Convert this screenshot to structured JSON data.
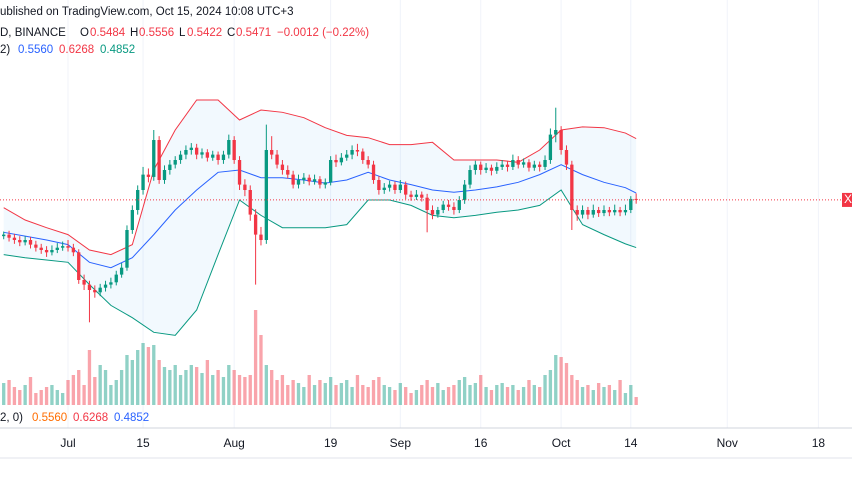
{
  "header": {
    "published": "ublished on TradingView.com, Oct 15, 2024 10:08 UTC+3",
    "symbol": "D, BINANCE",
    "ohlc": [
      "O",
      "0.5484",
      "H",
      "0.5556",
      "L",
      "0.5422",
      "C",
      "0.5471"
    ],
    "change": "−0.0012 (−0.22%)",
    "bb": [
      "2)",
      "0.5560",
      "0.6268",
      "0.4852"
    ],
    "bb_bottom": [
      "2, 0)",
      "0.5560",
      "0.6268",
      "0.4852"
    ],
    "price_tag": "X"
  },
  "chart_data": {
    "type": "candlestick",
    "up_color": "#089981",
    "down_color": "#f23645",
    "xlim": [
      -12.69,
      146.27
    ],
    "ylim": [
      0.2545,
      0.807
    ],
    "vlim": [
      0,
      100
    ],
    "grid": true,
    "xticks": [
      {
        "value": 0,
        "label": "Jul"
      },
      {
        "value": 14,
        "label": "15"
      },
      {
        "value": 31,
        "label": "Aug"
      },
      {
        "value": 49,
        "label": "19"
      },
      {
        "value": 62,
        "label": "Sep"
      },
      {
        "value": 77,
        "label": "16"
      },
      {
        "value": 92,
        "label": "Oct"
      },
      {
        "value": 105,
        "label": "14"
      },
      {
        "value": 123,
        "label": "Nov"
      },
      {
        "value": 140,
        "label": "18"
      }
    ],
    "x": [
      -12,
      -11,
      -10,
      -9,
      -8,
      -7,
      -6,
      -5,
      -4,
      -3,
      -2,
      -1,
      0,
      1,
      2,
      3,
      4,
      5,
      6,
      7,
      8,
      9,
      10,
      11,
      12,
      13,
      14,
      15,
      16,
      17,
      18,
      19,
      20,
      21,
      22,
      23,
      24,
      25,
      26,
      27,
      28,
      29,
      30,
      31,
      32,
      33,
      34,
      35,
      36,
      37,
      38,
      39,
      40,
      41,
      42,
      43,
      44,
      45,
      46,
      47,
      48,
      49,
      50,
      51,
      52,
      53,
      54,
      55,
      56,
      57,
      58,
      59,
      60,
      61,
      62,
      63,
      64,
      65,
      66,
      67,
      68,
      69,
      70,
      71,
      72,
      73,
      74,
      75,
      76,
      77,
      78,
      79,
      80,
      81,
      82,
      83,
      84,
      85,
      86,
      87,
      88,
      89,
      90,
      91,
      92,
      93,
      94,
      95,
      96,
      97,
      98,
      99,
      100,
      101,
      102,
      103,
      104,
      105,
      106
    ],
    "ohlc": [
      [
        0.5,
        0.506,
        0.496,
        0.502
      ],
      [
        0.502,
        0.507,
        0.493,
        0.498
      ],
      [
        0.498,
        0.503,
        0.49,
        0.495
      ],
      [
        0.495,
        0.5,
        0.487,
        0.492
      ],
      [
        0.492,
        0.5,
        0.488,
        0.495
      ],
      [
        0.495,
        0.499,
        0.484,
        0.489
      ],
      [
        0.489,
        0.494,
        0.48,
        0.485
      ],
      [
        0.485,
        0.49,
        0.477,
        0.482
      ],
      [
        0.482,
        0.487,
        0.473,
        0.479
      ],
      [
        0.479,
        0.488,
        0.475,
        0.482
      ],
      [
        0.482,
        0.491,
        0.478,
        0.485
      ],
      [
        0.485,
        0.493,
        0.481,
        0.487
      ],
      [
        0.487,
        0.495,
        0.48,
        0.485
      ],
      [
        0.485,
        0.49,
        0.474,
        0.479
      ],
      [
        0.479,
        0.483,
        0.438,
        0.443
      ],
      [
        0.443,
        0.45,
        0.43,
        0.437
      ],
      [
        0.437,
        0.442,
        0.388,
        0.43
      ],
      [
        0.43,
        0.436,
        0.42,
        0.427
      ],
      [
        0.427,
        0.438,
        0.422,
        0.433
      ],
      [
        0.433,
        0.442,
        0.428,
        0.437
      ],
      [
        0.437,
        0.446,
        0.432,
        0.44
      ],
      [
        0.44,
        0.455,
        0.436,
        0.45
      ],
      [
        0.45,
        0.465,
        0.446,
        0.459
      ],
      [
        0.459,
        0.514,
        0.455,
        0.508
      ],
      [
        0.508,
        0.54,
        0.503,
        0.534
      ],
      [
        0.534,
        0.566,
        0.528,
        0.56
      ],
      [
        0.56,
        0.59,
        0.554,
        0.58
      ],
      [
        0.58,
        0.588,
        0.57,
        0.577
      ],
      [
        0.577,
        0.638,
        0.572,
        0.625
      ],
      [
        0.625,
        0.63,
        0.568,
        0.573
      ],
      [
        0.573,
        0.592,
        0.568,
        0.586
      ],
      [
        0.586,
        0.599,
        0.58,
        0.593
      ],
      [
        0.593,
        0.604,
        0.588,
        0.599
      ],
      [
        0.599,
        0.611,
        0.594,
        0.606
      ],
      [
        0.606,
        0.618,
        0.6,
        0.612
      ],
      [
        0.612,
        0.621,
        0.606,
        0.615
      ],
      [
        0.615,
        0.62,
        0.6,
        0.606
      ],
      [
        0.606,
        0.614,
        0.601,
        0.609
      ],
      [
        0.609,
        0.613,
        0.597,
        0.602
      ],
      [
        0.602,
        0.611,
        0.598,
        0.606
      ],
      [
        0.606,
        0.61,
        0.593,
        0.599
      ],
      [
        0.599,
        0.611,
        0.594,
        0.606
      ],
      [
        0.606,
        0.632,
        0.601,
        0.625
      ],
      [
        0.625,
        0.63,
        0.594,
        0.599
      ],
      [
        0.599,
        0.604,
        0.56,
        0.567
      ],
      [
        0.567,
        0.574,
        0.552,
        0.56
      ],
      [
        0.56,
        0.566,
        0.52,
        0.528
      ],
      [
        0.528,
        0.535,
        0.437,
        0.502
      ],
      [
        0.502,
        0.512,
        0.488,
        0.495
      ],
      [
        0.495,
        0.645,
        0.49,
        0.612
      ],
      [
        0.612,
        0.63,
        0.6,
        0.606
      ],
      [
        0.606,
        0.612,
        0.588,
        0.593
      ],
      [
        0.593,
        0.599,
        0.58,
        0.586
      ],
      [
        0.586,
        0.592,
        0.575,
        0.58
      ],
      [
        0.58,
        0.585,
        0.562,
        0.567
      ],
      [
        0.567,
        0.58,
        0.562,
        0.573
      ],
      [
        0.573,
        0.582,
        0.568,
        0.576
      ],
      [
        0.576,
        0.58,
        0.566,
        0.571
      ],
      [
        0.571,
        0.58,
        0.567,
        0.574
      ],
      [
        0.574,
        0.578,
        0.562,
        0.567
      ],
      [
        0.567,
        0.575,
        0.562,
        0.57
      ],
      [
        0.57,
        0.604,
        0.566,
        0.599
      ],
      [
        0.599,
        0.606,
        0.59,
        0.596
      ],
      [
        0.596,
        0.608,
        0.592,
        0.602
      ],
      [
        0.602,
        0.612,
        0.598,
        0.606
      ],
      [
        0.606,
        0.618,
        0.6,
        0.612
      ],
      [
        0.612,
        0.62,
        0.604,
        0.61
      ],
      [
        0.61,
        0.614,
        0.594,
        0.599
      ],
      [
        0.599,
        0.604,
        0.588,
        0.593
      ],
      [
        0.593,
        0.598,
        0.568,
        0.573
      ],
      [
        0.573,
        0.578,
        0.554,
        0.56
      ],
      [
        0.56,
        0.569,
        0.555,
        0.563
      ],
      [
        0.563,
        0.572,
        0.558,
        0.567
      ],
      [
        0.567,
        0.571,
        0.555,
        0.56
      ],
      [
        0.56,
        0.573,
        0.556,
        0.567
      ],
      [
        0.567,
        0.571,
        0.548,
        0.554
      ],
      [
        0.554,
        0.559,
        0.546,
        0.551
      ],
      [
        0.551,
        0.56,
        0.547,
        0.554
      ],
      [
        0.554,
        0.558,
        0.545,
        0.55
      ],
      [
        0.55,
        0.555,
        0.505,
        0.534
      ],
      [
        0.534,
        0.54,
        0.522,
        0.528
      ],
      [
        0.528,
        0.538,
        0.524,
        0.534
      ],
      [
        0.534,
        0.546,
        0.53,
        0.541
      ],
      [
        0.541,
        0.547,
        0.533,
        0.538
      ],
      [
        0.538,
        0.544,
        0.528,
        0.534
      ],
      [
        0.534,
        0.552,
        0.53,
        0.547
      ],
      [
        0.547,
        0.573,
        0.542,
        0.567
      ],
      [
        0.567,
        0.592,
        0.562,
        0.586
      ],
      [
        0.586,
        0.598,
        0.58,
        0.593
      ],
      [
        0.593,
        0.597,
        0.58,
        0.586
      ],
      [
        0.586,
        0.595,
        0.582,
        0.589
      ],
      [
        0.589,
        0.593,
        0.579,
        0.585
      ],
      [
        0.585,
        0.596,
        0.581,
        0.59
      ],
      [
        0.59,
        0.599,
        0.586,
        0.593
      ],
      [
        0.593,
        0.597,
        0.584,
        0.59
      ],
      [
        0.59,
        0.606,
        0.586,
        0.599
      ],
      [
        0.599,
        0.604,
        0.588,
        0.593
      ],
      [
        0.593,
        0.601,
        0.589,
        0.596
      ],
      [
        0.596,
        0.6,
        0.584,
        0.589
      ],
      [
        0.589,
        0.598,
        0.585,
        0.593
      ],
      [
        0.593,
        0.597,
        0.584,
        0.59
      ],
      [
        0.59,
        0.605,
        0.586,
        0.599
      ],
      [
        0.599,
        0.64,
        0.594,
        0.632
      ],
      [
        0.632,
        0.667,
        0.622,
        0.638
      ],
      [
        0.638,
        0.643,
        0.606,
        0.612
      ],
      [
        0.612,
        0.618,
        0.586,
        0.593
      ],
      [
        0.593,
        0.598,
        0.508,
        0.534
      ],
      [
        0.534,
        0.54,
        0.52,
        0.528
      ],
      [
        0.528,
        0.54,
        0.523,
        0.534
      ],
      [
        0.534,
        0.538,
        0.522,
        0.528
      ],
      [
        0.528,
        0.541,
        0.524,
        0.534
      ],
      [
        0.534,
        0.538,
        0.525,
        0.53
      ],
      [
        0.53,
        0.54,
        0.526,
        0.534
      ],
      [
        0.534,
        0.538,
        0.526,
        0.531
      ],
      [
        0.531,
        0.541,
        0.527,
        0.534
      ],
      [
        0.534,
        0.538,
        0.526,
        0.531
      ],
      [
        0.531,
        0.541,
        0.527,
        0.534
      ],
      [
        0.534,
        0.552,
        0.53,
        0.5484
      ],
      [
        0.5484,
        0.5556,
        0.5422,
        0.5471
      ]
    ],
    "volume": [
      22,
      25,
      18,
      15,
      20,
      28,
      12,
      15,
      18,
      20,
      15,
      12,
      25,
      30,
      35,
      20,
      55,
      28,
      40,
      35,
      20,
      25,
      35,
      50,
      45,
      55,
      62,
      58,
      60,
      45,
      38,
      35,
      40,
      30,
      35,
      40,
      38,
      32,
      45,
      30,
      35,
      28,
      40,
      35,
      30,
      28,
      30,
      95,
      70,
      40,
      35,
      25,
      30,
      20,
      25,
      22,
      18,
      30,
      20,
      25,
      22,
      28,
      20,
      22,
      25,
      18,
      30,
      20,
      18,
      25,
      28,
      20,
      18,
      15,
      22,
      18,
      12,
      15,
      20,
      25,
      18,
      22,
      15,
      18,
      20,
      25,
      28,
      20,
      22,
      30,
      18,
      15,
      20,
      22,
      18,
      20,
      15,
      18,
      25,
      20,
      18,
      30,
      35,
      50,
      48,
      42,
      30,
      25,
      18,
      20,
      15,
      22,
      18,
      20,
      15,
      25,
      12,
      20,
      8
    ],
    "bands": {
      "x": [
        -12,
        -8,
        -4,
        0,
        4,
        8,
        12,
        16,
        20,
        24,
        28,
        32,
        36,
        40,
        44,
        48,
        52,
        56,
        60,
        64,
        68,
        72,
        76,
        80,
        84,
        88,
        92,
        96,
        100,
        104,
        106
      ],
      "upper": [
        0.537,
        0.521,
        0.511,
        0.502,
        0.482,
        0.476,
        0.489,
        0.586,
        0.638,
        0.677,
        0.677,
        0.651,
        0.664,
        0.661,
        0.654,
        0.641,
        0.631,
        0.628,
        0.619,
        0.619,
        0.622,
        0.599,
        0.599,
        0.599,
        0.596,
        0.612,
        0.638,
        0.642,
        0.641,
        0.634,
        0.6268
      ],
      "basis": [
        0.505,
        0.5,
        0.495,
        0.489,
        0.466,
        0.459,
        0.472,
        0.502,
        0.534,
        0.56,
        0.583,
        0.586,
        0.576,
        0.576,
        0.573,
        0.569,
        0.573,
        0.583,
        0.573,
        0.567,
        0.56,
        0.557,
        0.56,
        0.564,
        0.57,
        0.58,
        0.593,
        0.58,
        0.57,
        0.563,
        0.556
      ],
      "lower": [
        0.476,
        0.472,
        0.469,
        0.466,
        0.437,
        0.41,
        0.394,
        0.375,
        0.371,
        0.404,
        0.476,
        0.547,
        0.527,
        0.511,
        0.511,
        0.511,
        0.515,
        0.547,
        0.547,
        0.54,
        0.527,
        0.524,
        0.527,
        0.531,
        0.534,
        0.54,
        0.56,
        0.515,
        0.502,
        0.49,
        0.4852
      ],
      "upper_color": "#f23645",
      "basis_color": "#2962ff",
      "lower_color": "#089981",
      "fill": "rgba(33,150,243,0.06)"
    }
  }
}
